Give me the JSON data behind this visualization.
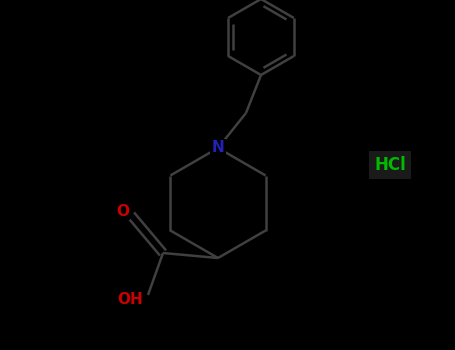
{
  "background_color": "#000000",
  "bond_color": "#404040",
  "N_color": "#2222bb",
  "O_color": "#cc0000",
  "HCl_color": "#00bb00",
  "label_N": "N",
  "label_OH": "OH",
  "label_HCl": "HCl",
  "figsize": [
    4.55,
    3.5
  ],
  "dpi": 100,
  "bond_lw": 1.8,
  "N_fontsize": 11,
  "label_fontsize": 11,
  "HCl_fontsize": 12
}
